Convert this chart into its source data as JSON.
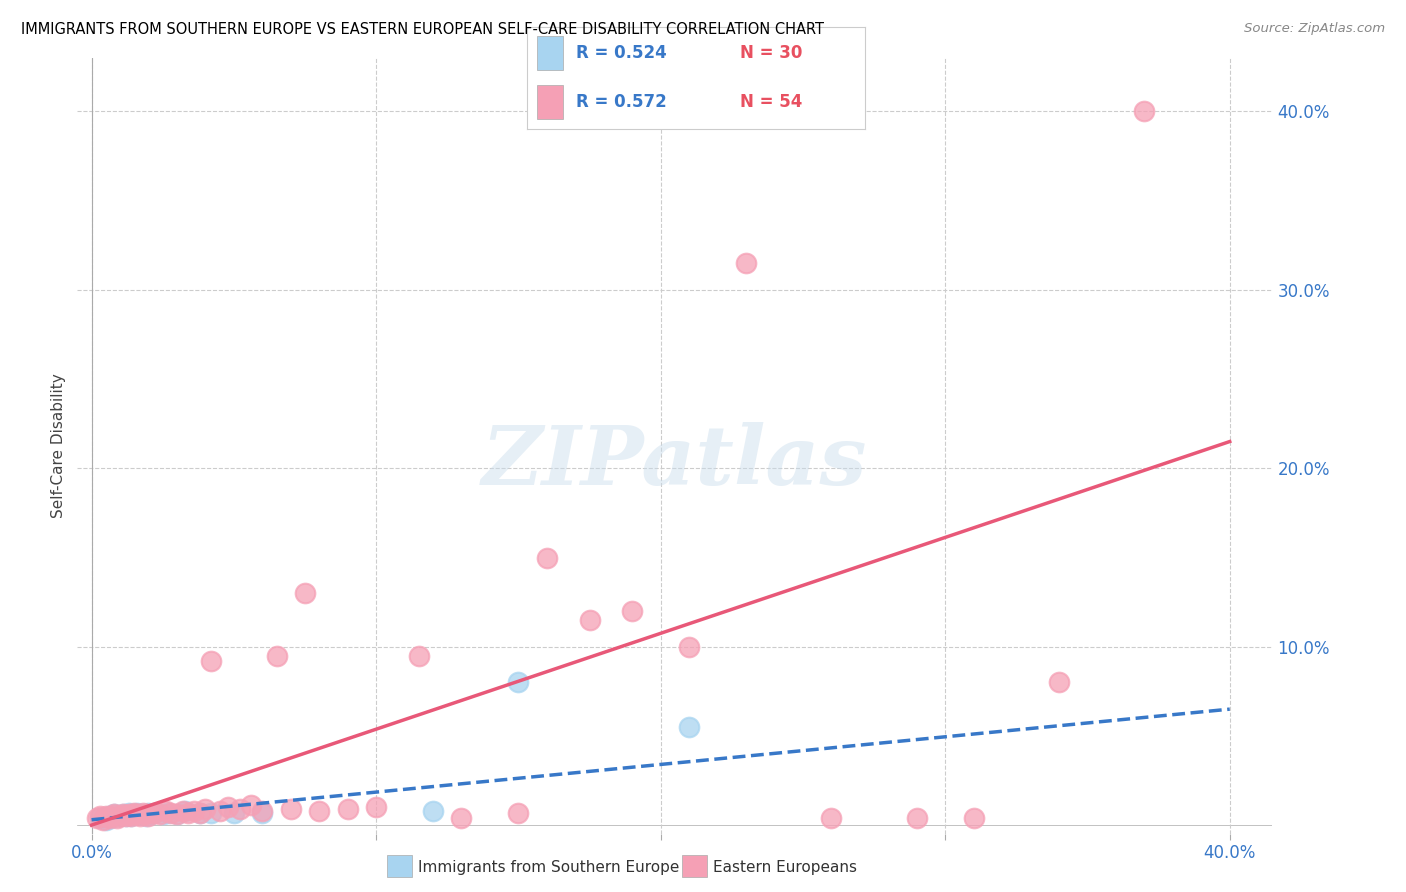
{
  "title": "IMMIGRANTS FROM SOUTHERN EUROPE VS EASTERN EUROPEAN SELF-CARE DISABILITY CORRELATION CHART",
  "source": "Source: ZipAtlas.com",
  "ylabel": "Self-Care Disability",
  "x_tick_labels_ends": [
    "0.0%",
    "40.0%"
  ],
  "x_tick_values": [
    0.0,
    0.1,
    0.2,
    0.3,
    0.4
  ],
  "y_tick_labels": [
    "40.0%",
    "30.0%",
    "20.0%",
    "10.0%"
  ],
  "y_tick_values": [
    0.4,
    0.3,
    0.2,
    0.1
  ],
  "xlim": [
    -0.005,
    0.415
  ],
  "ylim": [
    -0.005,
    0.43
  ],
  "legend_label1": "Immigrants from Southern Europe",
  "legend_label2": "Eastern Europeans",
  "R1": "0.524",
  "N1": "30",
  "R2": "0.572",
  "N2": "54",
  "color1": "#A8D4F0",
  "color2": "#F5A0B5",
  "trendline1_color": "#3878C8",
  "trendline2_color": "#E85878",
  "legend_text_color": "#3878C8",
  "axis_color": "#3878C8",
  "background_color": "#FFFFFF",
  "grid_color": "#CCCCCC",
  "watermark": "ZIPatlas",
  "se_trend_x0": 0.0,
  "se_trend_y0": 0.003,
  "se_trend_x1": 0.4,
  "se_trend_y1": 0.065,
  "ee_trend_x0": 0.0,
  "ee_trend_y0": 0.0,
  "ee_trend_x1": 0.4,
  "ee_trend_y1": 0.215,
  "southern_europe_x": [
    0.003,
    0.005,
    0.006,
    0.007,
    0.008,
    0.009,
    0.01,
    0.011,
    0.012,
    0.013,
    0.014,
    0.015,
    0.016,
    0.017,
    0.018,
    0.019,
    0.02,
    0.021,
    0.022,
    0.025,
    0.027,
    0.03,
    0.033,
    0.038,
    0.042,
    0.05,
    0.06,
    0.12,
    0.15,
    0.21
  ],
  "southern_europe_y": [
    0.004,
    0.003,
    0.005,
    0.004,
    0.006,
    0.005,
    0.005,
    0.006,
    0.005,
    0.007,
    0.005,
    0.006,
    0.007,
    0.006,
    0.006,
    0.005,
    0.007,
    0.006,
    0.007,
    0.006,
    0.007,
    0.006,
    0.008,
    0.007,
    0.007,
    0.007,
    0.007,
    0.008,
    0.08,
    0.055
  ],
  "eastern_europe_x": [
    0.002,
    0.003,
    0.004,
    0.005,
    0.006,
    0.007,
    0.008,
    0.009,
    0.01,
    0.011,
    0.012,
    0.013,
    0.014,
    0.015,
    0.016,
    0.017,
    0.018,
    0.019,
    0.02,
    0.022,
    0.024,
    0.026,
    0.028,
    0.03,
    0.032,
    0.034,
    0.036,
    0.038,
    0.04,
    0.042,
    0.045,
    0.048,
    0.052,
    0.056,
    0.06,
    0.065,
    0.07,
    0.075,
    0.08,
    0.09,
    0.1,
    0.115,
    0.13,
    0.15,
    0.16,
    0.175,
    0.19,
    0.21,
    0.23,
    0.26,
    0.29,
    0.31,
    0.34,
    0.37
  ],
  "eastern_europe_y": [
    0.004,
    0.005,
    0.003,
    0.005,
    0.004,
    0.005,
    0.006,
    0.004,
    0.005,
    0.006,
    0.005,
    0.006,
    0.005,
    0.007,
    0.006,
    0.005,
    0.007,
    0.006,
    0.005,
    0.007,
    0.006,
    0.008,
    0.007,
    0.006,
    0.008,
    0.007,
    0.008,
    0.007,
    0.009,
    0.092,
    0.008,
    0.01,
    0.009,
    0.011,
    0.008,
    0.095,
    0.009,
    0.13,
    0.008,
    0.009,
    0.01,
    0.095,
    0.004,
    0.007,
    0.15,
    0.115,
    0.12,
    0.1,
    0.315,
    0.004,
    0.004,
    0.004,
    0.08,
    0.4
  ]
}
